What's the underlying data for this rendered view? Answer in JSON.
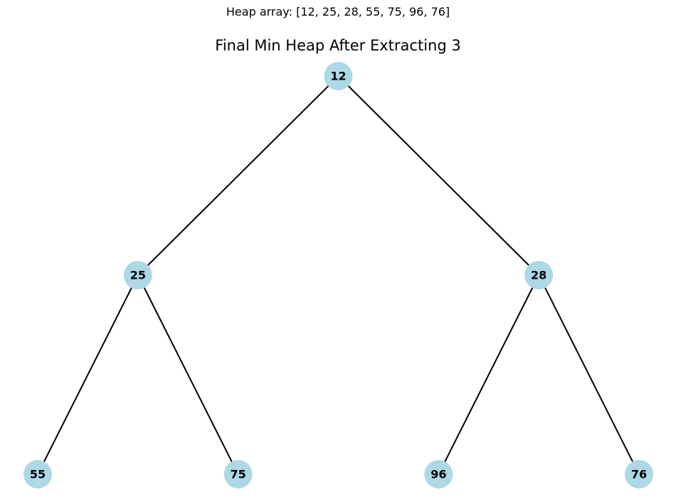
{
  "header": {
    "heap_array_text": "Heap array: [12, 25, 28, 55, 75, 96, 76]",
    "title": "Final Min Heap After Extracting 3"
  },
  "heap": {
    "array": [
      12,
      25,
      28,
      55,
      75,
      96,
      76
    ],
    "node_labels": [
      "12",
      "25",
      "28",
      "55",
      "75",
      "96",
      "76"
    ]
  },
  "colors": {
    "node_fill": "#add8e6",
    "edge": "#000000",
    "label": "#000000"
  }
}
